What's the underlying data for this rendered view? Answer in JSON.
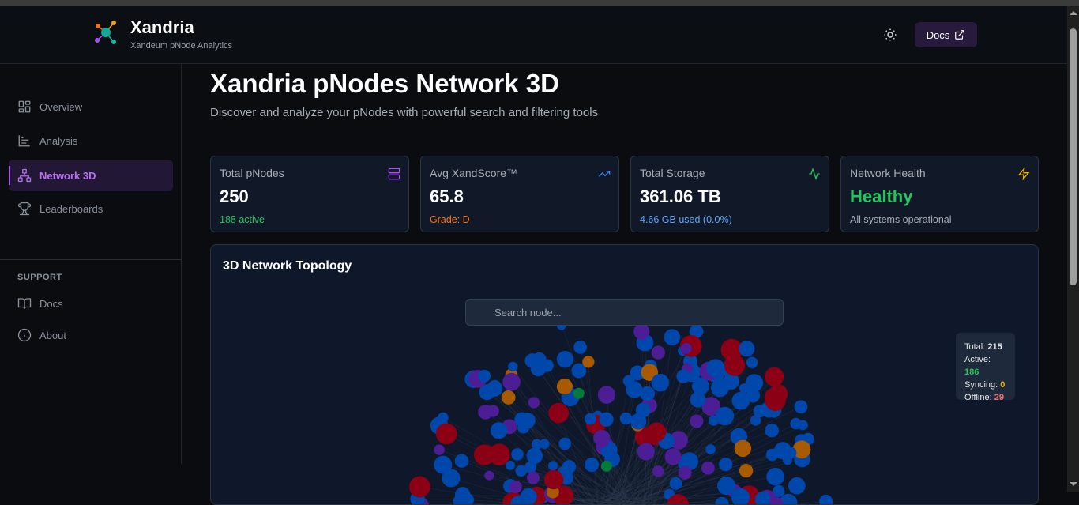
{
  "app": {
    "name": "Xandria",
    "tagline": "Xandeum pNode Analytics",
    "docs_label": "Docs",
    "theme_icon": "sun-icon"
  },
  "sidebar": {
    "items": [
      {
        "label": "Overview",
        "icon": "layout-dashboard-icon"
      },
      {
        "label": "Analysis",
        "icon": "bar-chart-icon"
      },
      {
        "label": "Network 3D",
        "icon": "network-icon",
        "active": true
      },
      {
        "label": "Leaderboards",
        "icon": "trophy-icon"
      }
    ],
    "support_heading": "SUPPORT",
    "support_items": [
      {
        "label": "Docs",
        "icon": "book-open-icon"
      },
      {
        "label": "About",
        "icon": "info-icon"
      }
    ]
  },
  "page": {
    "title": "Xandria pNodes Network 3D",
    "subtitle": "Discover and analyze your pNodes with powerful search and filtering tools"
  },
  "cards": [
    {
      "label": "Total pNodes",
      "value": "250",
      "sub": "188 active",
      "sub_color": "#22c55e",
      "icon": "server-icon",
      "icon_color": "#a855f7"
    },
    {
      "label": "Avg XandScore™",
      "value": "65.8",
      "sub": "Grade: D",
      "sub_color": "#f97316",
      "icon": "trending-up-icon",
      "icon_color": "#3b82f6"
    },
    {
      "label": "Total Storage",
      "value": "361.06 TB",
      "sub": "4.66 GB used (0.0%)",
      "sub_color": "#60a5fa",
      "icon": "activity-icon",
      "icon_color": "#22c55e"
    },
    {
      "label": "Network Health",
      "value": "Healthy",
      "value_color": "#22c55e",
      "sub": "All systems operational",
      "sub_color": "#a7aeb8",
      "icon": "zap-icon",
      "icon_color": "#eab308"
    }
  ],
  "topology": {
    "title": "3D Network Topology",
    "search_placeholder": "Search node...",
    "legend": {
      "total_label": "Total:",
      "total": "215",
      "active_label": "Active:",
      "active": "186",
      "syncing_label": "Syncing:",
      "syncing": "0",
      "offline_label": "Offline:",
      "offline": "29"
    },
    "colors": {
      "active": "#0047ab",
      "offline": "#8b0014",
      "purple": "#4c1d95",
      "orange": "#a85a00",
      "green": "#047a3a"
    }
  }
}
